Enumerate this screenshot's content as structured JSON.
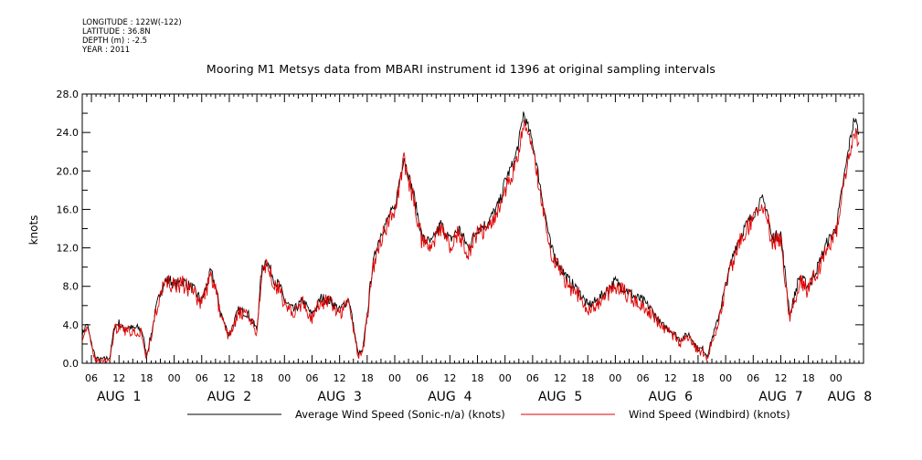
{
  "header": {
    "longitude": "LONGITUDE : 122W(-122)",
    "latitude": "LATITUDE : 36.8N",
    "depth": "DEPTH (m) : -2.5",
    "year": "YEAR : 2011"
  },
  "chart_data": {
    "type": "line",
    "title": "Mooring M1 Metsys data from MBARI instrument id 1396 at original sampling intervals",
    "ylabel": "knots",
    "xlabel": "",
    "ylim": [
      0,
      28
    ],
    "yticks": [
      "0.0",
      "4.0",
      "8.0",
      "12.0",
      "16.0",
      "20.0",
      "24.0",
      "28.0"
    ],
    "xlim_hours": [
      4,
      174
    ],
    "x_tick_hours": [
      6,
      12,
      18,
      24,
      30,
      36,
      42,
      48,
      54,
      60,
      66,
      72,
      78,
      84,
      90,
      96,
      102,
      108,
      114,
      120,
      126,
      132,
      138,
      144,
      150,
      156,
      162,
      168
    ],
    "x_tick_labels": [
      "06",
      "12",
      "18",
      "00",
      "06",
      "12",
      "18",
      "00",
      "06",
      "12",
      "18",
      "00",
      "06",
      "12",
      "18",
      "00",
      "06",
      "12",
      "18",
      "00",
      "06",
      "12",
      "18",
      "00",
      "06",
      "12",
      "18",
      "00"
    ],
    "day_labels": [
      {
        "text": "AUG  1",
        "hour": 12
      },
      {
        "text": "AUG  2",
        "hour": 36
      },
      {
        "text": "AUG  3",
        "hour": 60
      },
      {
        "text": "AUG  4",
        "hour": 84
      },
      {
        "text": "AUG  5",
        "hour": 108
      },
      {
        "text": "AUG  6",
        "hour": 132
      },
      {
        "text": "AUG  7",
        "hour": 156
      },
      {
        "text": "AUG  8",
        "hour": 171
      }
    ],
    "legend_placement": "bottom",
    "series": [
      {
        "name": "Average Wind Speed (Sonic-n/a) (knots)",
        "color": "#000000",
        "hours": [
          4,
          5,
          6,
          7,
          8,
          10,
          11,
          12,
          13,
          14,
          15,
          16,
          17,
          18,
          19,
          20,
          21,
          22,
          23,
          24,
          26,
          28,
          30,
          32,
          33,
          34,
          35,
          36,
          38,
          40,
          42,
          43,
          44,
          46,
          47,
          48,
          50,
          52,
          54,
          56,
          58,
          60,
          62,
          64,
          65,
          66,
          67,
          68,
          69,
          70,
          71,
          72,
          73,
          74,
          75,
          76,
          78,
          80,
          82,
          84,
          86,
          88,
          90,
          92,
          94,
          95,
          96,
          97,
          98,
          99,
          100,
          102,
          104,
          106,
          108,
          110,
          112,
          114,
          116,
          118,
          120,
          122,
          124,
          126,
          128,
          130,
          132,
          134,
          136,
          138,
          139,
          140,
          141,
          142,
          144,
          146,
          148,
          150,
          152,
          153,
          154,
          156,
          157,
          158,
          160,
          162,
          164,
          166,
          168,
          169,
          170,
          171,
          172,
          173
        ],
        "values": [
          3.0,
          4.2,
          2.0,
          0.5,
          0.4,
          0.6,
          3.8,
          4.2,
          3.5,
          3.8,
          3.6,
          3.7,
          3.4,
          0.8,
          3.0,
          5.5,
          7.5,
          8.5,
          8.7,
          8.2,
          8.5,
          7.8,
          6.5,
          9.5,
          8.0,
          5.5,
          4.0,
          3.0,
          5.5,
          5.2,
          3.5,
          9.5,
          10.8,
          8.5,
          8.0,
          6.5,
          5.5,
          6.5,
          5.0,
          6.8,
          6.5,
          5.5,
          6.8,
          1.0,
          1.2,
          5.0,
          9.5,
          12.0,
          13.5,
          14.5,
          15.5,
          16.0,
          19.0,
          21.5,
          19.5,
          17.8,
          13.0,
          12.5,
          14.5,
          12.8,
          14.0,
          12.0,
          14.0,
          14.5,
          16.0,
          17.0,
          19.0,
          20.0,
          21.0,
          23.0,
          26.0,
          23.0,
          17.5,
          12.0,
          10.0,
          8.5,
          7.5,
          6.0,
          6.5,
          7.5,
          8.5,
          7.8,
          7.0,
          6.5,
          5.5,
          4.0,
          3.5,
          2.5,
          3.0,
          1.5,
          1.5,
          0.8,
          2.5,
          4.0,
          8.0,
          12.0,
          14.0,
          15.5,
          17.0,
          16.0,
          13.0,
          13.5,
          9.0,
          5.0,
          9.0,
          8.0,
          10.0,
          12.5,
          14.0,
          17.0,
          20.0,
          23.0,
          25.5,
          24.0
        ]
      },
      {
        "name": "Wind Speed (Windbird) (knots)",
        "color": "#e00000",
        "hours": [
          4,
          5,
          6,
          7,
          8,
          10,
          11,
          12,
          13,
          14,
          15,
          16,
          17,
          18,
          19,
          20,
          21,
          22,
          23,
          24,
          26,
          28,
          30,
          32,
          33,
          34,
          35,
          36,
          38,
          40,
          42,
          43,
          44,
          46,
          47,
          48,
          50,
          52,
          54,
          56,
          58,
          60,
          62,
          64,
          65,
          66,
          67,
          68,
          69,
          70,
          71,
          72,
          73,
          74,
          75,
          76,
          78,
          80,
          82,
          84,
          86,
          88,
          90,
          92,
          94,
          95,
          96,
          97,
          98,
          99,
          100,
          102,
          104,
          106,
          108,
          110,
          112,
          114,
          116,
          118,
          120,
          122,
          124,
          126,
          128,
          130,
          132,
          134,
          136,
          138,
          139,
          140,
          141,
          142,
          144,
          146,
          148,
          150,
          152,
          153,
          154,
          156,
          157,
          158,
          160,
          162,
          164,
          166,
          168,
          169,
          170,
          171,
          172,
          173
        ],
        "values": [
          2.8,
          3.8,
          1.7,
          0.3,
          0.2,
          0.4,
          3.4,
          3.9,
          3.2,
          3.5,
          3.3,
          3.4,
          3.1,
          0.5,
          2.7,
          5.2,
          7.2,
          8.2,
          8.4,
          7.9,
          8.2,
          7.5,
          6.2,
          9.1,
          7.7,
          5.2,
          3.7,
          2.7,
          5.2,
          4.9,
          3.2,
          9.2,
          10.5,
          8.2,
          7.7,
          6.2,
          5.2,
          6.2,
          4.7,
          6.5,
          6.2,
          5.2,
          6.5,
          0.8,
          1.0,
          4.7,
          9.2,
          11.6,
          13.0,
          14.0,
          15.0,
          15.5,
          18.5,
          21.0,
          19.0,
          17.3,
          12.5,
          12.0,
          14.0,
          12.3,
          13.5,
          11.5,
          13.5,
          14.0,
          15.5,
          16.5,
          18.0,
          19.0,
          20.0,
          22.0,
          25.0,
          22.0,
          16.8,
          11.5,
          9.6,
          8.1,
          7.1,
          5.6,
          6.1,
          7.1,
          8.1,
          7.4,
          6.6,
          6.1,
          5.1,
          3.6,
          3.1,
          2.1,
          2.6,
          1.2,
          1.2,
          0.5,
          2.2,
          3.6,
          7.6,
          11.5,
          13.5,
          15.0,
          16.5,
          15.5,
          12.5,
          13.0,
          8.6,
          4.6,
          8.6,
          7.6,
          9.6,
          12.0,
          13.5,
          16.5,
          19.0,
          22.0,
          24.5,
          23.0
        ]
      }
    ]
  }
}
